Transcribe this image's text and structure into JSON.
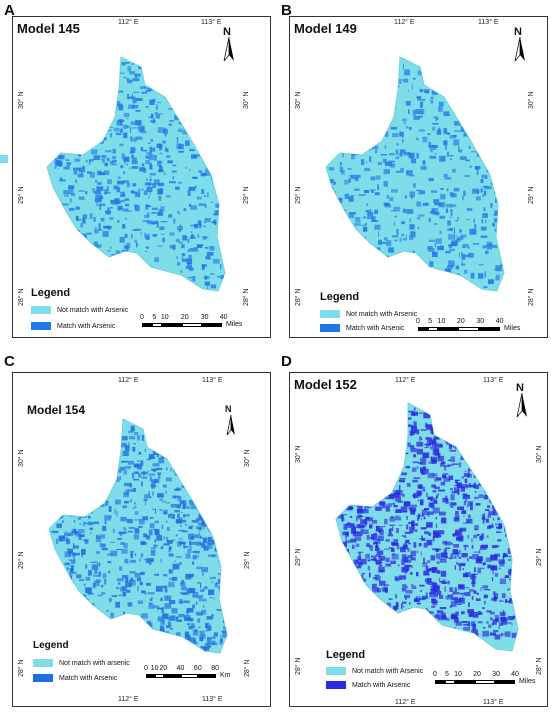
{
  "panels": [
    {
      "id": "A",
      "letter": "A",
      "title": "Model 145",
      "coords": {
        "top_left": "112° E",
        "top_right": "113° E",
        "left_30": "30° N",
        "left_29": "29° N",
        "left_28": "28° N",
        "right_30": "30° N",
        "right_29": "29° N",
        "right_28": "28° N"
      },
      "north": "N",
      "legend": {
        "title": "Legend",
        "items": [
          {
            "label": "Not match with Arsenic",
            "color": "#7fdde9"
          },
          {
            "label": "Match with Arsenic",
            "color": "#1f78e6"
          }
        ]
      },
      "scale": {
        "labels": [
          "0",
          "5",
          "10",
          "20",
          "30",
          "40"
        ],
        "unit": "Miles"
      }
    },
    {
      "id": "B",
      "letter": "B",
      "title": "Model 149",
      "coords": {
        "top_left": "112° E",
        "top_right": "113° E",
        "left_30": "30° N",
        "left_29": "29° N",
        "left_28": "28° N",
        "right_30": "30° N",
        "right_29": "29° N",
        "right_28": "28° N"
      },
      "north": "N",
      "legend": {
        "title": "Legend",
        "items": [
          {
            "label": "Not match with Arsenic",
            "color": "#7fdde9"
          },
          {
            "label": "Match with Arsenic",
            "color": "#1f78e6"
          }
        ]
      },
      "scale": {
        "labels": [
          "0",
          "5",
          "10",
          "20",
          "30",
          "40"
        ],
        "unit": "Miles"
      }
    },
    {
      "id": "C",
      "letter": "C",
      "title": "Model 154",
      "coords": {
        "top_left": "112° E",
        "top_right": "113° E",
        "bottom_left": "112° E",
        "bottom_right": "113° E",
        "left_30": "30° N",
        "left_29": "29° N",
        "left_28": "28° N",
        "right_30": "30° N",
        "right_29": "29° N",
        "right_28": "28° N"
      },
      "north": "N",
      "legend": {
        "title": "Legend",
        "items": [
          {
            "label": "Not match with arsenic",
            "color": "#7fdde9"
          },
          {
            "label": "Match with Arsenic",
            "color": "#1f6fe0"
          }
        ]
      },
      "scale": {
        "labels": [
          "0",
          "10",
          "20",
          "40",
          "60",
          "80"
        ],
        "unit": "Km"
      }
    },
    {
      "id": "D",
      "letter": "D",
      "title": "Model 152",
      "coords": {
        "top_left": "112° E",
        "top_right": "113° E",
        "bottom_left": "112° E",
        "bottom_right": "113° E",
        "left_30": "30° N",
        "left_29": "29° N",
        "left_28": "28° N",
        "right_30": "30° N",
        "right_29": "29° N",
        "right_28": "28° N"
      },
      "north": "N",
      "legend": {
        "title": "Legend",
        "items": [
          {
            "label": "Not match with Arsenic",
            "color": "#7fdde9"
          },
          {
            "label": "Match with Arsenic",
            "color": "#2a2ae0"
          }
        ]
      },
      "scale": {
        "labels": [
          "0",
          "5",
          "10",
          "20",
          "30",
          "40"
        ],
        "unit": "Miles"
      }
    }
  ],
  "colors": {
    "map_base": "#7fdde9",
    "map_edge": "#6fd0df",
    "match_a": "#1f78e6",
    "match_b": "#1f78e6",
    "match_c": "#1f6fe0",
    "match_d": "#2a2ae0"
  }
}
